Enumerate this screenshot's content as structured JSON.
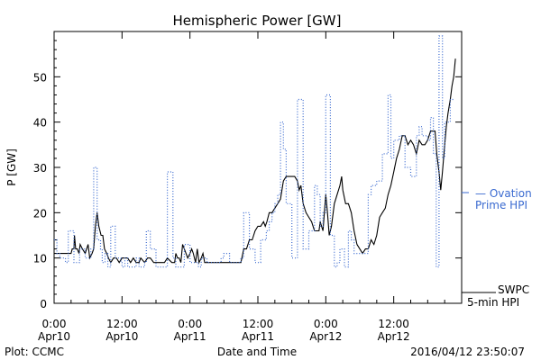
{
  "chart_data": {
    "type": "line",
    "title": "Hemispheric Power [GW]",
    "xlabel": "Date and Time",
    "ylabel": "P [GW]",
    "xlim": [
      0,
      72
    ],
    "ylim": [
      0,
      60
    ],
    "yticks": [
      0,
      10,
      20,
      30,
      40,
      50
    ],
    "xticks": [
      {
        "value": 0,
        "line1": "0:00",
        "line2": "Apr10"
      },
      {
        "value": 12,
        "line1": "12:00",
        "line2": "Apr10"
      },
      {
        "value": 24,
        "line1": "0:00",
        "line2": "Apr11"
      },
      {
        "value": 36,
        "line1": "12:00",
        "line2": "Apr11"
      },
      {
        "value": 48,
        "line1": "0:00",
        "line2": "Apr12"
      },
      {
        "value": 60,
        "line1": "12:00",
        "line2": "Apr12"
      }
    ],
    "footer_left": "Plot: CCMC",
    "footer_right": "2016/04/12 23:50:07",
    "series": [
      {
        "name": "SWPC 5-min HPI",
        "label_line1": "SWPC",
        "label_line2": "5-min HPI",
        "color": "#000000",
        "style": "solid",
        "step": false,
        "points": [
          [
            0,
            11
          ],
          [
            3,
            11
          ],
          [
            3.2,
            12
          ],
          [
            3.5,
            12
          ],
          [
            3.6,
            15
          ],
          [
            3.8,
            12
          ],
          [
            4.1,
            12
          ],
          [
            4.4,
            11
          ],
          [
            4.6,
            13
          ],
          [
            5,
            12
          ],
          [
            5.5,
            11
          ],
          [
            6,
            13
          ],
          [
            6.3,
            10
          ],
          [
            6.7,
            11
          ],
          [
            7,
            12
          ],
          [
            7.3,
            17
          ],
          [
            7.6,
            20
          ],
          [
            7.9,
            17
          ],
          [
            8.3,
            15
          ],
          [
            8.6,
            15
          ],
          [
            8.9,
            12
          ],
          [
            9.3,
            11
          ],
          [
            9.6,
            10
          ],
          [
            10,
            9
          ],
          [
            10.5,
            10
          ],
          [
            11,
            10
          ],
          [
            11.5,
            9
          ],
          [
            12,
            10
          ],
          [
            13,
            10
          ],
          [
            13.5,
            9
          ],
          [
            14,
            10
          ],
          [
            14.5,
            9
          ],
          [
            15,
            9
          ],
          [
            15.3,
            10
          ],
          [
            16,
            9
          ],
          [
            16.5,
            10
          ],
          [
            17,
            10
          ],
          [
            17.6,
            9
          ],
          [
            19,
            9
          ],
          [
            19.5,
            9
          ],
          [
            20,
            10
          ],
          [
            20.8,
            9
          ],
          [
            21,
            9
          ],
          [
            21.3,
            9
          ],
          [
            21.5,
            11
          ],
          [
            21.8,
            10
          ],
          [
            22.1,
            10
          ],
          [
            22.4,
            9
          ],
          [
            22.7,
            13
          ],
          [
            23,
            12
          ],
          [
            23.3,
            11
          ],
          [
            23.6,
            10
          ],
          [
            24,
            11
          ],
          [
            24.3,
            12
          ],
          [
            24.6,
            11
          ],
          [
            25,
            9
          ],
          [
            25.3,
            12
          ],
          [
            25.6,
            9
          ],
          [
            26,
            10
          ],
          [
            26.3,
            11
          ],
          [
            26.6,
            9
          ],
          [
            27,
            9
          ],
          [
            33,
            9
          ],
          [
            33.5,
            12
          ],
          [
            34,
            12
          ],
          [
            34.5,
            14
          ],
          [
            35,
            14
          ],
          [
            35.5,
            16
          ],
          [
            36,
            17
          ],
          [
            36.5,
            17
          ],
          [
            37,
            18
          ],
          [
            37.3,
            17
          ],
          [
            37.6,
            18
          ],
          [
            38,
            20
          ],
          [
            38.5,
            20
          ],
          [
            39,
            21
          ],
          [
            39.5,
            22
          ],
          [
            40,
            23
          ],
          [
            40.5,
            27
          ],
          [
            41,
            28
          ],
          [
            41.5,
            28
          ],
          [
            42,
            28
          ],
          [
            42.5,
            28
          ],
          [
            43,
            27
          ],
          [
            43.3,
            25
          ],
          [
            43.6,
            26
          ],
          [
            44,
            22
          ],
          [
            44.5,
            20
          ],
          [
            45,
            19
          ],
          [
            45.5,
            18
          ],
          [
            46,
            16
          ],
          [
            46.5,
            16
          ],
          [
            46.8,
            16
          ],
          [
            47,
            18
          ],
          [
            47.5,
            16
          ],
          [
            48,
            24
          ],
          [
            48.3,
            20
          ],
          [
            48.6,
            15
          ],
          [
            49,
            17
          ],
          [
            49.5,
            22
          ],
          [
            50,
            24
          ],
          [
            50.5,
            26
          ],
          [
            50.8,
            28
          ],
          [
            51,
            25
          ],
          [
            51.5,
            22
          ],
          [
            52,
            22
          ],
          [
            52.5,
            20
          ],
          [
            53,
            16
          ],
          [
            53.5,
            13
          ],
          [
            54,
            12
          ],
          [
            54.5,
            11
          ],
          [
            55,
            12
          ],
          [
            55.5,
            12
          ],
          [
            56,
            14
          ],
          [
            56.5,
            13
          ],
          [
            57,
            15
          ],
          [
            57.5,
            19
          ],
          [
            58,
            20
          ],
          [
            58.5,
            21
          ],
          [
            59,
            24
          ],
          [
            59.5,
            26
          ],
          [
            60,
            29
          ],
          [
            60.5,
            32
          ],
          [
            61,
            34
          ],
          [
            61.5,
            37
          ],
          [
            62,
            37
          ],
          [
            62.5,
            35
          ],
          [
            63,
            36
          ],
          [
            63.5,
            35
          ],
          [
            64,
            33
          ],
          [
            64.5,
            36
          ],
          [
            65,
            35
          ],
          [
            65.5,
            35
          ],
          [
            66,
            36
          ],
          [
            66.5,
            38
          ],
          [
            67,
            38
          ],
          [
            67.3,
            38
          ],
          [
            67.6,
            33
          ],
          [
            68,
            29
          ],
          [
            68.3,
            25
          ],
          [
            68.6,
            29
          ],
          [
            69,
            35
          ],
          [
            69.3,
            39
          ],
          [
            69.6,
            42
          ],
          [
            70,
            45
          ],
          [
            70.3,
            48
          ],
          [
            70.6,
            50
          ],
          [
            70.9,
            54
          ]
        ]
      },
      {
        "name": "Ovation Prime HPI",
        "label_line1": "— Ovation",
        "label_line2": "Prime HPI",
        "color": "#3a6ad0",
        "style": "dotted",
        "step": true,
        "points": [
          [
            0,
            14
          ],
          [
            0.5,
            11
          ],
          [
            1,
            10
          ],
          [
            1.5,
            10
          ],
          [
            2,
            9
          ],
          [
            2.5,
            16
          ],
          [
            3.5,
            9
          ],
          [
            4.5,
            12
          ],
          [
            5.5,
            10
          ],
          [
            6,
            10
          ],
          [
            6.5,
            12
          ],
          [
            7,
            30
          ],
          [
            7.6,
            14
          ],
          [
            8.2,
            12
          ],
          [
            8.5,
            9
          ],
          [
            9,
            11
          ],
          [
            9.5,
            8
          ],
          [
            10,
            17
          ],
          [
            10.8,
            10
          ],
          [
            11.2,
            10
          ],
          [
            11.8,
            9
          ],
          [
            12,
            8
          ],
          [
            12.5,
            10
          ],
          [
            13,
            8
          ],
          [
            14,
            8
          ],
          [
            14.5,
            10
          ],
          [
            15,
            8
          ],
          [
            16,
            9
          ],
          [
            16.3,
            16
          ],
          [
            17,
            12
          ],
          [
            18,
            8
          ],
          [
            19.5,
            8
          ],
          [
            20,
            29
          ],
          [
            21,
            10
          ],
          [
            21.5,
            8
          ],
          [
            23,
            13
          ],
          [
            23.5,
            13
          ],
          [
            24,
            9
          ],
          [
            25,
            9
          ],
          [
            25.5,
            8
          ],
          [
            26,
            10
          ],
          [
            26.5,
            10
          ],
          [
            27,
            9
          ],
          [
            28,
            9
          ],
          [
            29,
            9
          ],
          [
            29.5,
            10
          ],
          [
            30,
            11
          ],
          [
            31,
            9
          ],
          [
            32,
            9
          ],
          [
            33,
            10
          ],
          [
            33.5,
            20
          ],
          [
            34,
            20
          ],
          [
            34.5,
            12
          ],
          [
            35,
            12
          ],
          [
            35.5,
            9
          ],
          [
            36,
            9
          ],
          [
            36.5,
            14
          ],
          [
            37,
            14
          ],
          [
            37.5,
            16
          ],
          [
            38,
            18
          ],
          [
            38.5,
            20
          ],
          [
            39,
            22
          ],
          [
            39.5,
            24
          ],
          [
            40,
            40
          ],
          [
            40.5,
            34
          ],
          [
            41,
            22
          ],
          [
            42,
            10
          ],
          [
            43,
            45
          ],
          [
            43.8,
            45
          ],
          [
            44,
            12
          ],
          [
            45,
            16
          ],
          [
            46,
            26
          ],
          [
            46.5,
            24
          ],
          [
            47,
            17
          ],
          [
            47.5,
            20
          ],
          [
            48,
            46
          ],
          [
            48.8,
            15
          ],
          [
            49.5,
            8
          ],
          [
            50,
            9
          ],
          [
            50.5,
            12
          ],
          [
            51.3,
            8
          ],
          [
            52,
            16
          ],
          [
            52.5,
            14
          ],
          [
            53,
            11
          ],
          [
            54,
            11
          ],
          [
            55,
            11
          ],
          [
            55.5,
            24
          ],
          [
            56,
            26
          ],
          [
            57,
            27
          ],
          [
            58,
            33
          ],
          [
            59,
            46
          ],
          [
            59.5,
            32
          ],
          [
            60,
            36
          ],
          [
            61,
            37
          ],
          [
            62,
            30
          ],
          [
            63,
            28
          ],
          [
            64,
            37
          ],
          [
            64.5,
            39
          ],
          [
            65,
            37
          ],
          [
            66,
            36
          ],
          [
            66.5,
            41
          ],
          [
            67,
            33
          ],
          [
            67.5,
            8
          ],
          [
            68,
            59
          ],
          [
            68.6,
            32
          ],
          [
            69,
            40
          ],
          [
            70,
            45
          ]
        ]
      }
    ]
  }
}
